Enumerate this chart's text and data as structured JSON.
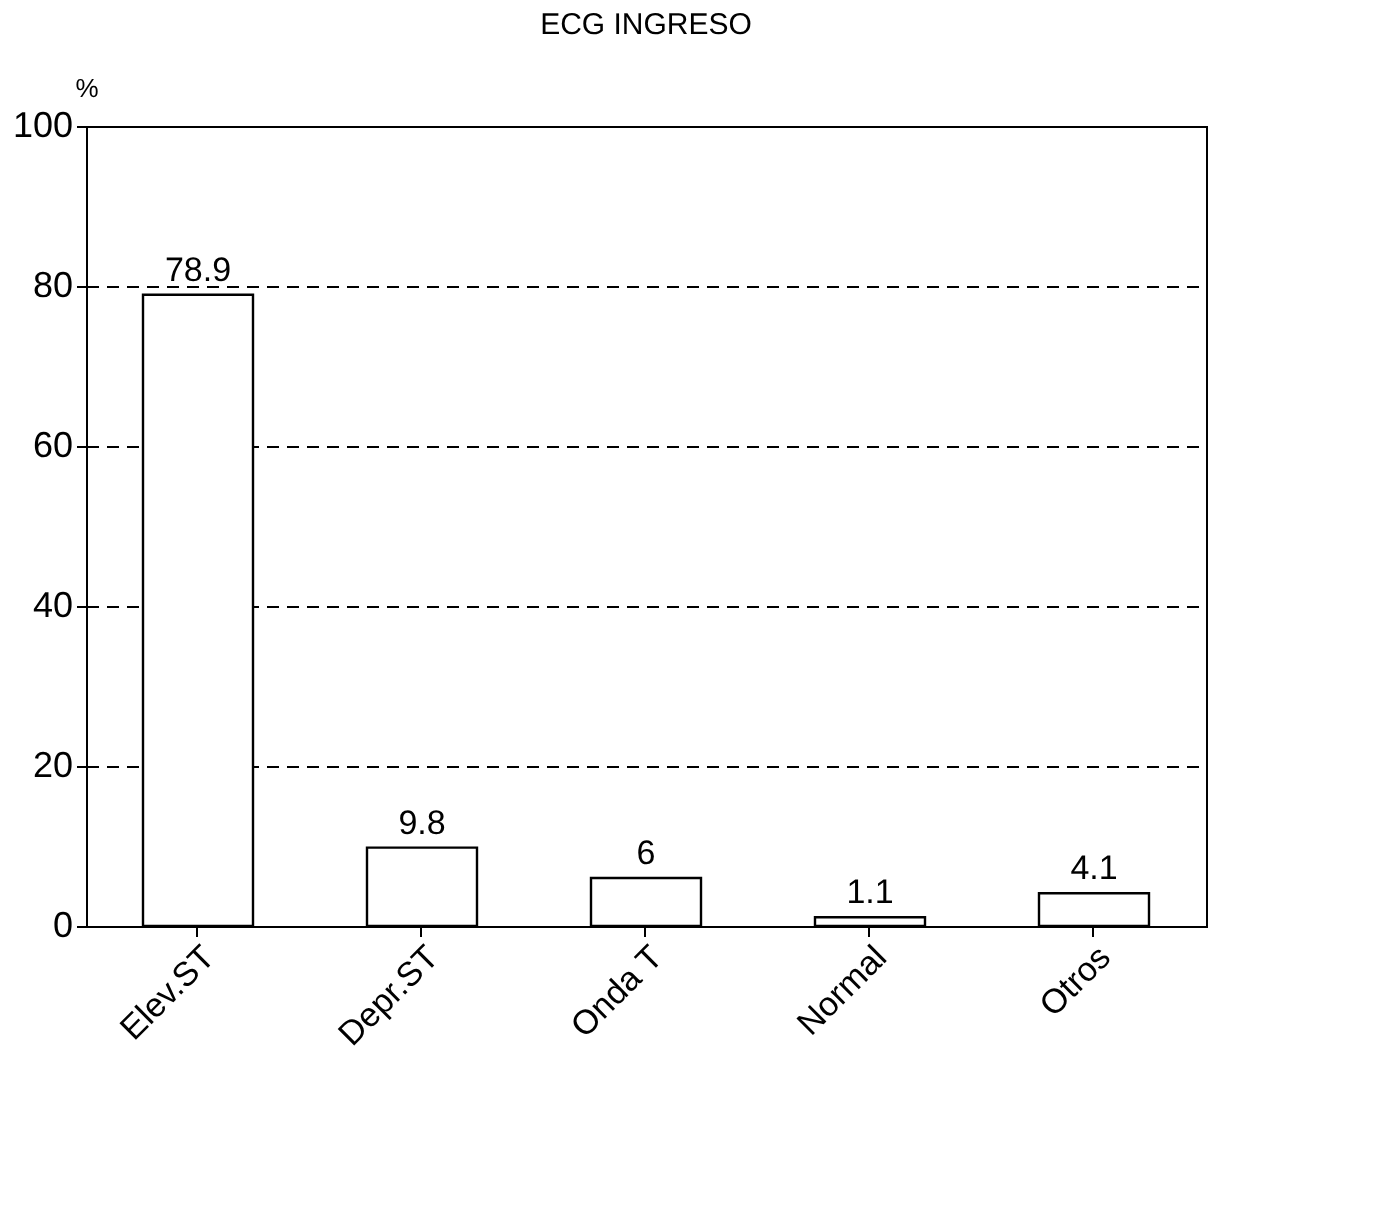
{
  "chart_data": {
    "type": "bar",
    "title": "ECG INGRESO",
    "ylabel": "%",
    "categories": [
      "Elev.ST",
      "Depr.ST",
      "Onda T",
      "Normal",
      "Otros"
    ],
    "values": [
      78.9,
      9.8,
      6,
      1.1,
      4.1
    ],
    "color": "#ffffff",
    "ylim": [
      0,
      100
    ],
    "yticks": [
      0,
      20,
      40,
      60,
      80,
      100
    ],
    "grid": "y",
    "data_labels": true
  }
}
